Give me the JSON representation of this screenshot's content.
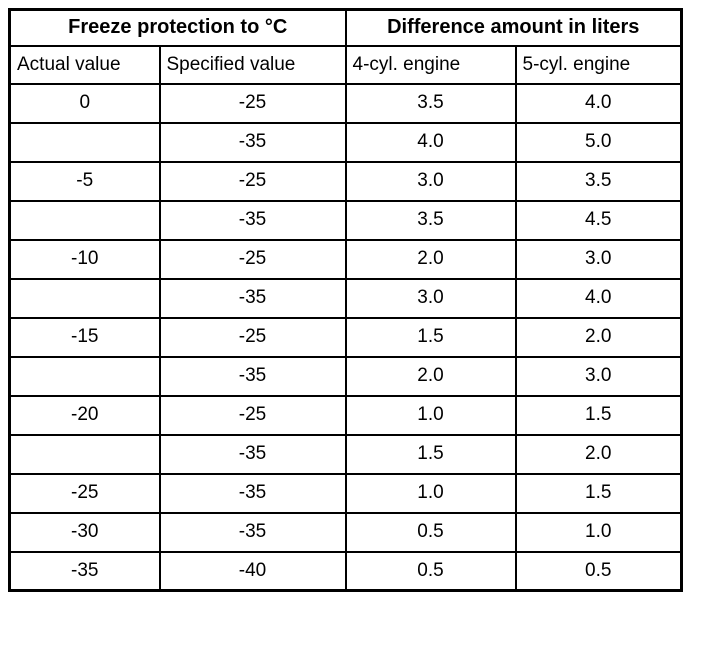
{
  "table": {
    "header_groups": [
      {
        "label": "Freeze protection to °C",
        "colspan": 2
      },
      {
        "label": "Difference amount in liters",
        "colspan": 2
      }
    ],
    "columns": [
      "Actual value",
      "Specified value",
      "4-cyl. engine",
      "5-cyl. engine"
    ],
    "rows": [
      [
        "0",
        "-25",
        "3.5",
        "4.0"
      ],
      [
        "",
        "-35",
        "4.0",
        "5.0"
      ],
      [
        "-5",
        "-25",
        "3.0",
        "3.5"
      ],
      [
        "",
        "-35",
        "3.5",
        "4.5"
      ],
      [
        "-10",
        "-25",
        "2.0",
        "3.0"
      ],
      [
        "",
        "-35",
        "3.0",
        "4.0"
      ],
      [
        "-15",
        "-25",
        "1.5",
        "2.0"
      ],
      [
        "",
        "-35",
        "2.0",
        "3.0"
      ],
      [
        "-20",
        "-25",
        "1.0",
        "1.5"
      ],
      [
        "",
        "-35",
        "1.5",
        "2.0"
      ],
      [
        "-25",
        "-35",
        "1.0",
        "1.5"
      ],
      [
        "-30",
        "-35",
        "0.5",
        "1.0"
      ],
      [
        "-35",
        "-40",
        "0.5",
        "0.5"
      ]
    ],
    "colors": {
      "border": "#000000",
      "background": "#ffffff",
      "text": "#000000"
    }
  }
}
